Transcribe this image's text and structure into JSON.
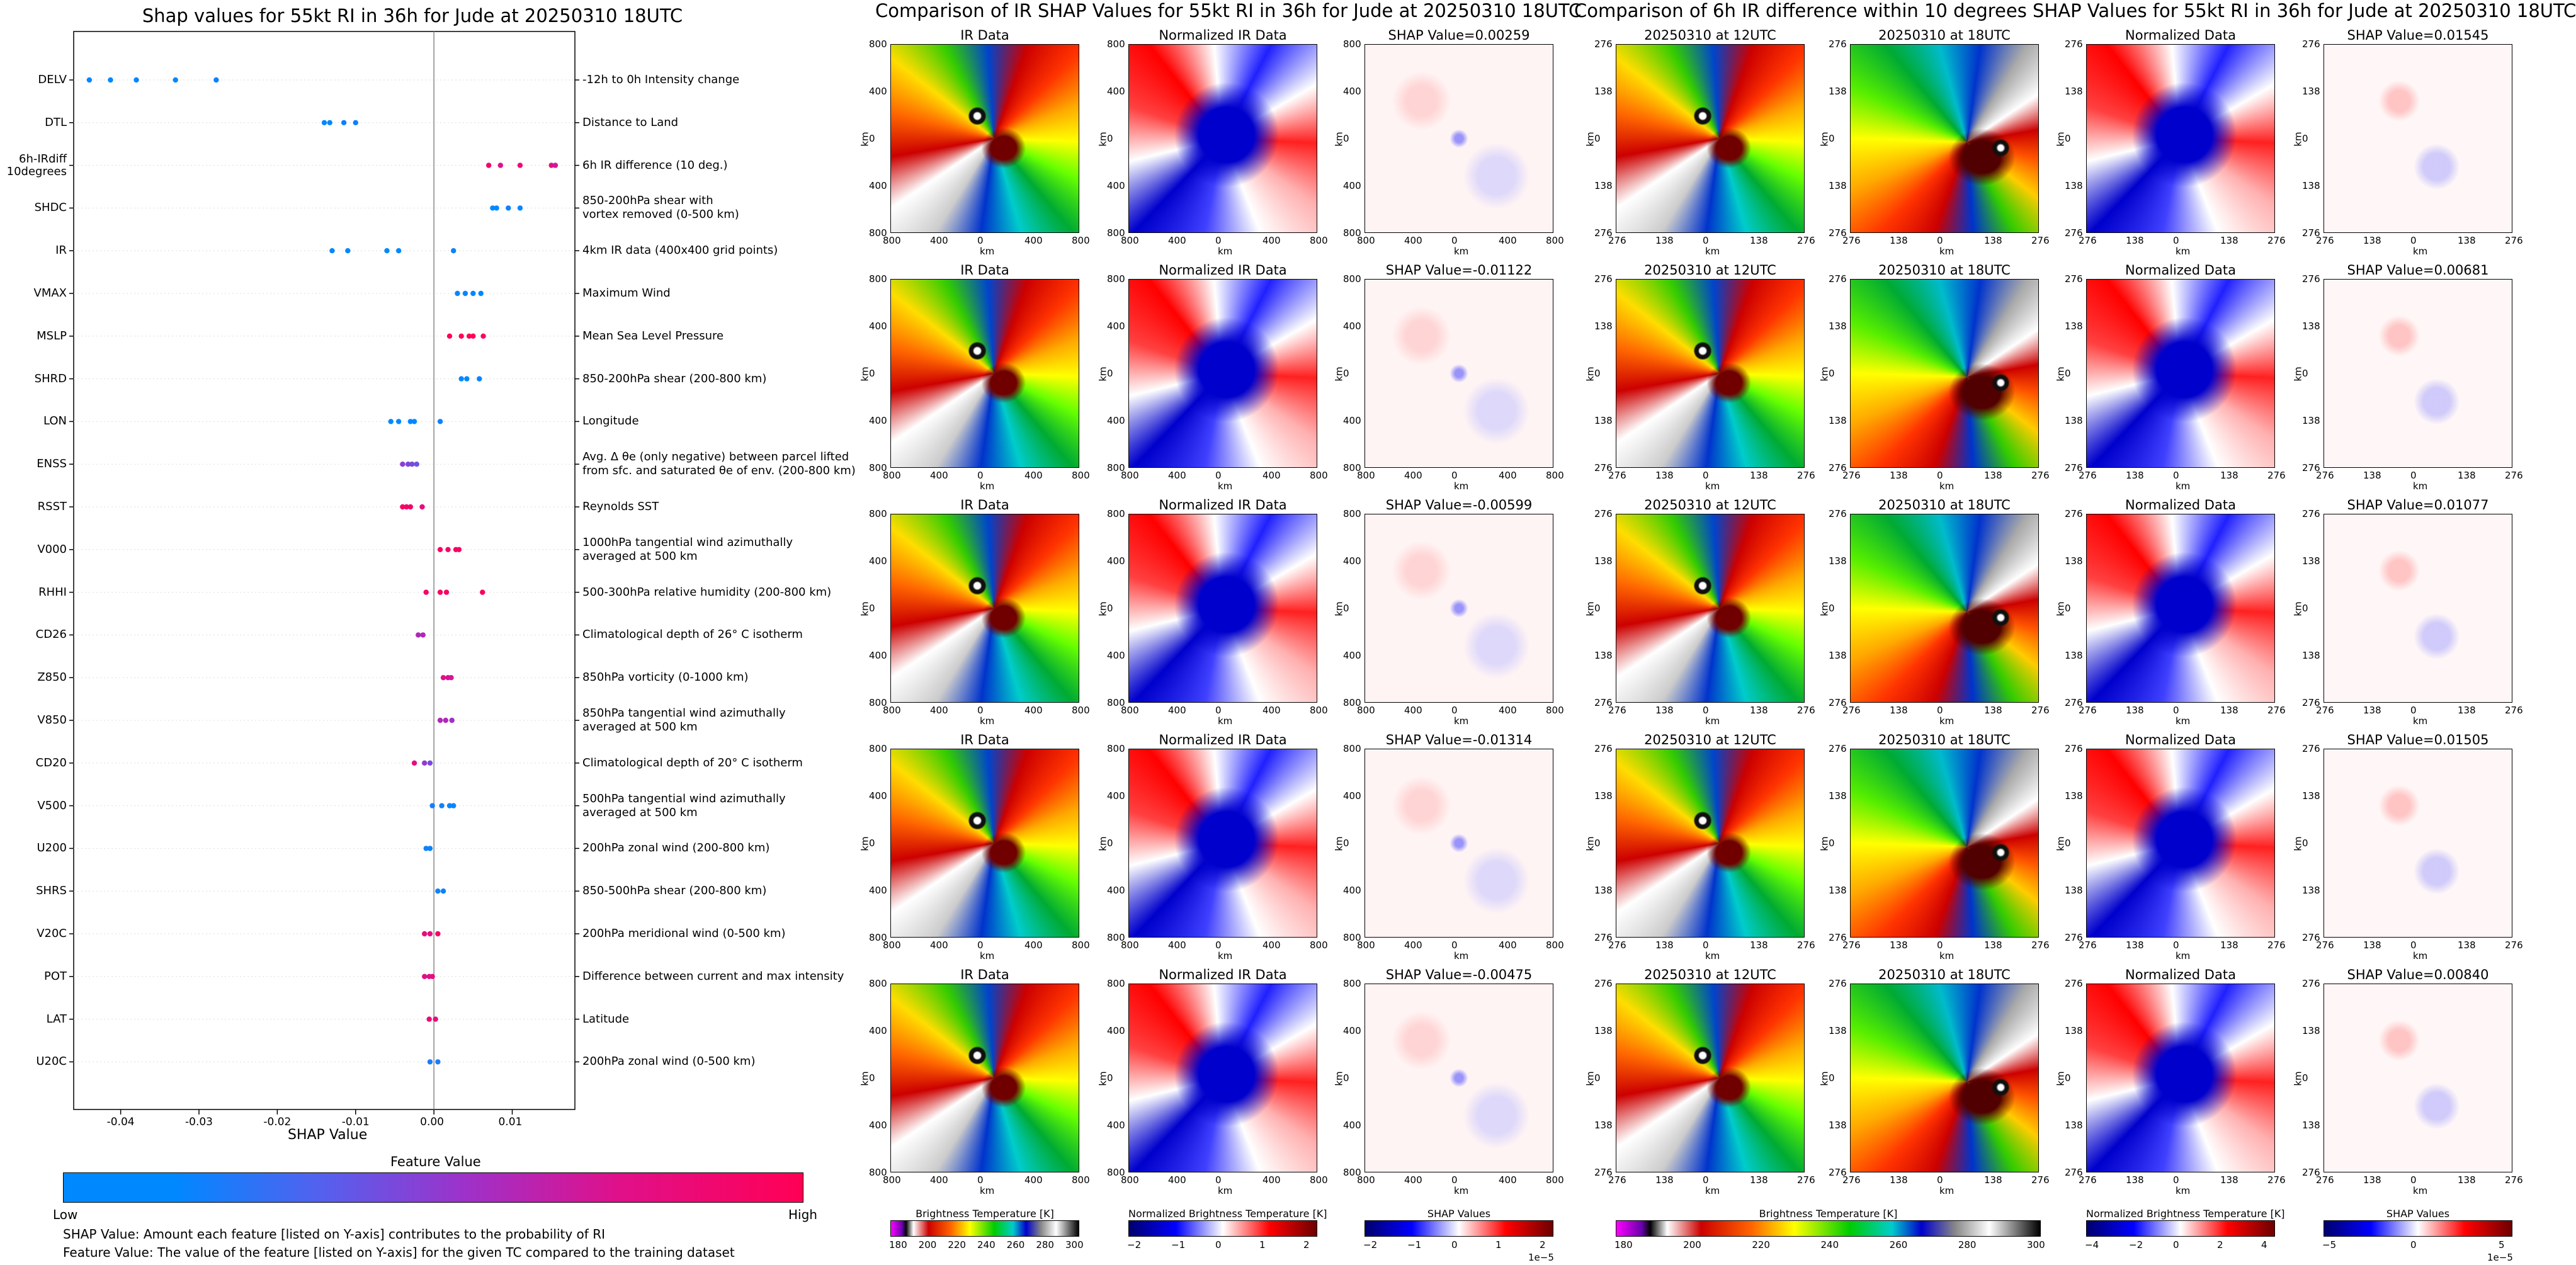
{
  "colors": {
    "low": "#0088ff",
    "high": "#ff0055",
    "zero_line": "#888888"
  },
  "left": {
    "title": "Shap values for 55kt RI in 36h for Jude at 20250310 18UTC",
    "xlabel": "SHAP Value",
    "xticks": [
      "-0.04",
      "-0.03",
      "-0.02",
      "-0.01",
      "0.00",
      "0.01"
    ],
    "colorbar_title": "Feature Value",
    "colorbar_low": "Low",
    "colorbar_high": "High",
    "footnote1": "SHAP Value: Amount each feature [listed on Y-axis] contributes to the probability of RI",
    "footnote2": "Feature Value: The value of the feature [listed on Y-axis] for the given TC compared to the training dataset",
    "features": [
      {
        "code": "DELV",
        "desc": "-12h to 0h Intensity change"
      },
      {
        "code": "DTL",
        "desc": "Distance to Land"
      },
      {
        "code": "6h-IRdiff\n10degrees",
        "desc": "6h IR difference (10 deg.)"
      },
      {
        "code": "SHDC",
        "desc": "850-200hPa shear with\nvortex removed (0-500 km)"
      },
      {
        "code": "IR",
        "desc": "4km IR data (400x400 grid points)"
      },
      {
        "code": "VMAX",
        "desc": "Maximum Wind"
      },
      {
        "code": "MSLP",
        "desc": "Mean Sea Level Pressure"
      },
      {
        "code": "SHRD",
        "desc": "850-200hPa shear (200-800 km)"
      },
      {
        "code": "LON",
        "desc": "Longitude"
      },
      {
        "code": "ENSS",
        "desc": "Avg. Δ θe (only negative) between parcel lifted\nfrom sfc. and saturated θe of env. (200-800 km)"
      },
      {
        "code": "RSST",
        "desc": "Reynolds SST"
      },
      {
        "code": "V000",
        "desc": "1000hPa tangential wind azimuthally\naveraged at 500 km"
      },
      {
        "code": "RHHI",
        "desc": "500-300hPa relative humidity (200-800 km)"
      },
      {
        "code": "CD26",
        "desc": "Climatological depth of 26° C isotherm"
      },
      {
        "code": "Z850",
        "desc": "850hPa vorticity (0-1000 km)"
      },
      {
        "code": "V850",
        "desc": "850hPa tangential wind azimuthally\naveraged at 500 km"
      },
      {
        "code": "CD20",
        "desc": "Climatological depth of 20° C isotherm"
      },
      {
        "code": "V500",
        "desc": "500hPa tangential wind azimuthally\naveraged at 500 km"
      },
      {
        "code": "U200",
        "desc": "200hPa zonal wind (200-800 km)"
      },
      {
        "code": "SHRS",
        "desc": "850-500hPa shear (200-800 km)"
      },
      {
        "code": "V20C",
        "desc": "200hPa meridional wind (0-500 km)"
      },
      {
        "code": "POT",
        "desc": "Difference between current and max intensity"
      },
      {
        "code": "LAT",
        "desc": "Latitude"
      },
      {
        "code": "U20C",
        "desc": "200hPa zonal wind (0-500 km)"
      }
    ]
  },
  "middle": {
    "title": "Comparison of IR SHAP Values for 55kt RI in 36h for Jude at 20250310 18UTC",
    "col_titles": [
      "IR Data",
      "Normalized IR Data"
    ],
    "shap_titles": [
      "SHAP Value=0.00259",
      "SHAP Value=-0.01122",
      "SHAP Value=-0.00599",
      "SHAP Value=-0.01314",
      "SHAP Value=-0.00475"
    ],
    "ticks": [
      "800",
      "400",
      "0",
      "400",
      "800"
    ],
    "km_label": "km",
    "cb1_label": "Brightness Temperature [K]",
    "cb1_ticks": [
      "180",
      "200",
      "220",
      "240",
      "260",
      "280",
      "300"
    ],
    "cb2_label": "Normalized Brightness Temperature [K]",
    "cb2_ticks": [
      "−2",
      "−1",
      "0",
      "1",
      "2"
    ],
    "cb3_label": "SHAP Values",
    "cb3_ticks": [
      "−2",
      "−1",
      "0",
      "1",
      "2"
    ],
    "cb3_exp": "1e−5"
  },
  "right": {
    "title": "Comparison of 6h IR difference within 10 degrees SHAP Values for 55kt RI in 36h for Jude at 20250310 18UTC",
    "col_titles": [
      "20250310 at 12UTC",
      "20250310 at 18UTC",
      "Normalized Data"
    ],
    "shap_titles": [
      "SHAP Value=0.01545",
      "SHAP Value=0.00681",
      "SHAP Value=0.01077",
      "SHAP Value=0.01505",
      "SHAP Value=0.00840"
    ],
    "ticks": [
      "276",
      "138",
      "0",
      "138",
      "276"
    ],
    "km_label": "km",
    "cb1_label": "Brightness Temperature [K]",
    "cb1_ticks": [
      "180",
      "200",
      "220",
      "240",
      "260",
      "280",
      "300"
    ],
    "cb2_label": "Normalized Brightness Temperature [K]",
    "cb2_ticks": [
      "−4",
      "−2",
      "0",
      "2",
      "4"
    ],
    "cb3_label": "SHAP Values",
    "cb3_ticks": [
      "−5",
      "0",
      "5"
    ],
    "cb3_exp": "1e−5"
  },
  "chart_data": [
    {
      "type": "scatter",
      "title": "Shap values for 55kt RI in 36h for Jude at 20250310 18UTC",
      "xlabel": "SHAP Value",
      "ylabel": "",
      "xlim": [
        -0.046,
        0.018
      ],
      "grid": false,
      "legend": "colorbar below (Feature Value: Low to High)",
      "categories": [
        "DELV",
        "DTL",
        "6h-IRdiff 10degrees",
        "SHDC",
        "IR",
        "VMAX",
        "MSLP",
        "SHRD",
        "LON",
        "ENSS",
        "RSST",
        "V000",
        "RHHI",
        "CD26",
        "Z850",
        "V850",
        "CD20",
        "V500",
        "U200",
        "SHRS",
        "V20C",
        "POT",
        "LAT",
        "U20C"
      ],
      "points": [
        {
          "f": 0,
          "x": -0.044,
          "v": 0.0
        },
        {
          "f": 0,
          "x": -0.0413,
          "v": 0.0
        },
        {
          "f": 0,
          "x": -0.038,
          "v": 0.0
        },
        {
          "f": 0,
          "x": -0.033,
          "v": 0.0
        },
        {
          "f": 0,
          "x": -0.0278,
          "v": 0.05
        },
        {
          "f": 1,
          "x": -0.014,
          "v": 0.0
        },
        {
          "f": 1,
          "x": -0.0133,
          "v": 0.0
        },
        {
          "f": 1,
          "x": -0.0115,
          "v": 0.05
        },
        {
          "f": 1,
          "x": -0.01,
          "v": 0.05
        },
        {
          "f": 2,
          "x": 0.007,
          "v": 0.9
        },
        {
          "f": 2,
          "x": 0.0085,
          "v": 0.75
        },
        {
          "f": 2,
          "x": 0.011,
          "v": 0.85
        },
        {
          "f": 2,
          "x": 0.015,
          "v": 0.8
        },
        {
          "f": 2,
          "x": 0.0155,
          "v": 0.7
        },
        {
          "f": 3,
          "x": 0.0075,
          "v": 0.0
        },
        {
          "f": 3,
          "x": 0.008,
          "v": 0.0
        },
        {
          "f": 3,
          "x": 0.0095,
          "v": 0.05
        },
        {
          "f": 3,
          "x": 0.011,
          "v": 0.0
        },
        {
          "f": 4,
          "x": -0.013,
          "v": 0.0
        },
        {
          "f": 4,
          "x": -0.011,
          "v": 0.0
        },
        {
          "f": 4,
          "x": -0.006,
          "v": 0.0
        },
        {
          "f": 4,
          "x": -0.0045,
          "v": 0.0
        },
        {
          "f": 4,
          "x": 0.0025,
          "v": 0.05
        },
        {
          "f": 5,
          "x": 0.003,
          "v": 0.0
        },
        {
          "f": 5,
          "x": 0.004,
          "v": 0.0
        },
        {
          "f": 5,
          "x": 0.005,
          "v": 0.0
        },
        {
          "f": 5,
          "x": 0.006,
          "v": 0.0
        },
        {
          "f": 6,
          "x": 0.002,
          "v": 1.0
        },
        {
          "f": 6,
          "x": 0.0035,
          "v": 1.0
        },
        {
          "f": 6,
          "x": 0.0045,
          "v": 1.0
        },
        {
          "f": 6,
          "x": 0.005,
          "v": 1.0
        },
        {
          "f": 6,
          "x": 0.0063,
          "v": 0.95
        },
        {
          "f": 7,
          "x": 0.0035,
          "v": 0.0
        },
        {
          "f": 7,
          "x": 0.0042,
          "v": 0.0
        },
        {
          "f": 7,
          "x": 0.0058,
          "v": 0.05
        },
        {
          "f": 8,
          "x": -0.0055,
          "v": 0.0
        },
        {
          "f": 8,
          "x": -0.0045,
          "v": 0.0
        },
        {
          "f": 8,
          "x": -0.003,
          "v": 0.0
        },
        {
          "f": 8,
          "x": -0.0025,
          "v": 0.0
        },
        {
          "f": 8,
          "x": 0.0008,
          "v": 0.05
        },
        {
          "f": 9,
          "x": -0.004,
          "v": 0.5
        },
        {
          "f": 9,
          "x": -0.0033,
          "v": 0.45
        },
        {
          "f": 9,
          "x": -0.0028,
          "v": 0.45
        },
        {
          "f": 9,
          "x": -0.0022,
          "v": 0.4
        },
        {
          "f": 10,
          "x": -0.004,
          "v": 0.95
        },
        {
          "f": 10,
          "x": -0.0035,
          "v": 0.9
        },
        {
          "f": 10,
          "x": -0.003,
          "v": 0.9
        },
        {
          "f": 10,
          "x": -0.0015,
          "v": 0.8
        },
        {
          "f": 11,
          "x": 0.0008,
          "v": 0.95
        },
        {
          "f": 11,
          "x": 0.0018,
          "v": 0.9
        },
        {
          "f": 11,
          "x": 0.0028,
          "v": 0.95
        },
        {
          "f": 11,
          "x": 0.0032,
          "v": 0.95
        },
        {
          "f": 12,
          "x": -0.001,
          "v": 0.9
        },
        {
          "f": 12,
          "x": 0.0008,
          "v": 0.95
        },
        {
          "f": 12,
          "x": 0.0016,
          "v": 0.95
        },
        {
          "f": 12,
          "x": 0.0062,
          "v": 0.95
        },
        {
          "f": 13,
          "x": -0.002,
          "v": 0.6
        },
        {
          "f": 13,
          "x": -0.0014,
          "v": 0.6
        },
        {
          "f": 14,
          "x": 0.0012,
          "v": 0.75
        },
        {
          "f": 14,
          "x": 0.0018,
          "v": 0.75
        },
        {
          "f": 14,
          "x": 0.0022,
          "v": 0.7
        },
        {
          "f": 15,
          "x": 0.0008,
          "v": 0.6
        },
        {
          "f": 15,
          "x": 0.0015,
          "v": 0.6
        },
        {
          "f": 15,
          "x": 0.0023,
          "v": 0.55
        },
        {
          "f": 16,
          "x": -0.0025,
          "v": 0.8
        },
        {
          "f": 16,
          "x": -0.0012,
          "v": 0.5
        },
        {
          "f": 16,
          "x": -0.0005,
          "v": 0.45
        },
        {
          "f": 17,
          "x": -0.0002,
          "v": 0.1
        },
        {
          "f": 17,
          "x": 0.001,
          "v": 0.05
        },
        {
          "f": 17,
          "x": 0.002,
          "v": 0.0
        },
        {
          "f": 17,
          "x": 0.0025,
          "v": 0.0
        },
        {
          "f": 18,
          "x": -0.001,
          "v": 0.05
        },
        {
          "f": 18,
          "x": -0.0005,
          "v": 0.05
        },
        {
          "f": 19,
          "x": 0.0005,
          "v": 0.05
        },
        {
          "f": 19,
          "x": 0.0012,
          "v": 0.05
        },
        {
          "f": 20,
          "x": -0.0012,
          "v": 0.8
        },
        {
          "f": 20,
          "x": -0.0005,
          "v": 0.8
        },
        {
          "f": 20,
          "x": 0.0005,
          "v": 0.9
        },
        {
          "f": 21,
          "x": -0.0012,
          "v": 0.75
        },
        {
          "f": 21,
          "x": -0.0006,
          "v": 0.75
        },
        {
          "f": 21,
          "x": -0.0002,
          "v": 0.8
        },
        {
          "f": 22,
          "x": -0.0006,
          "v": 0.85
        },
        {
          "f": 22,
          "x": 0.0002,
          "v": 0.8
        },
        {
          "f": 23,
          "x": -0.0005,
          "v": 0.1
        },
        {
          "f": 23,
          "x": 0.0005,
          "v": 0.1
        }
      ]
    },
    {
      "type": "heatmap",
      "title": "Comparison of IR SHAP Values for 55kt RI in 36h for Jude at 20250310 18UTC",
      "xlabel": "km",
      "ylabel": "km",
      "xlim": [
        -800,
        800
      ],
      "ylim": [
        -800,
        800
      ],
      "columns": [
        "IR Data",
        "Normalized IR Data",
        "SHAP Value"
      ],
      "shap_values": [
        0.00259,
        -0.01122,
        -0.00599,
        -0.01314,
        -0.00475
      ]
    },
    {
      "type": "heatmap",
      "title": "Comparison of 6h IR difference within 10 degrees SHAP Values for 55kt RI in 36h for Jude at 20250310 18UTC",
      "xlabel": "km",
      "ylabel": "km",
      "xlim": [
        -276,
        276
      ],
      "ylim": [
        -276,
        276
      ],
      "columns": [
        "20250310 at 12UTC",
        "20250310 at 18UTC",
        "Normalized Data",
        "SHAP Value"
      ],
      "shap_values": [
        0.01545,
        0.00681,
        0.01077,
        0.01505,
        0.0084
      ]
    }
  ]
}
